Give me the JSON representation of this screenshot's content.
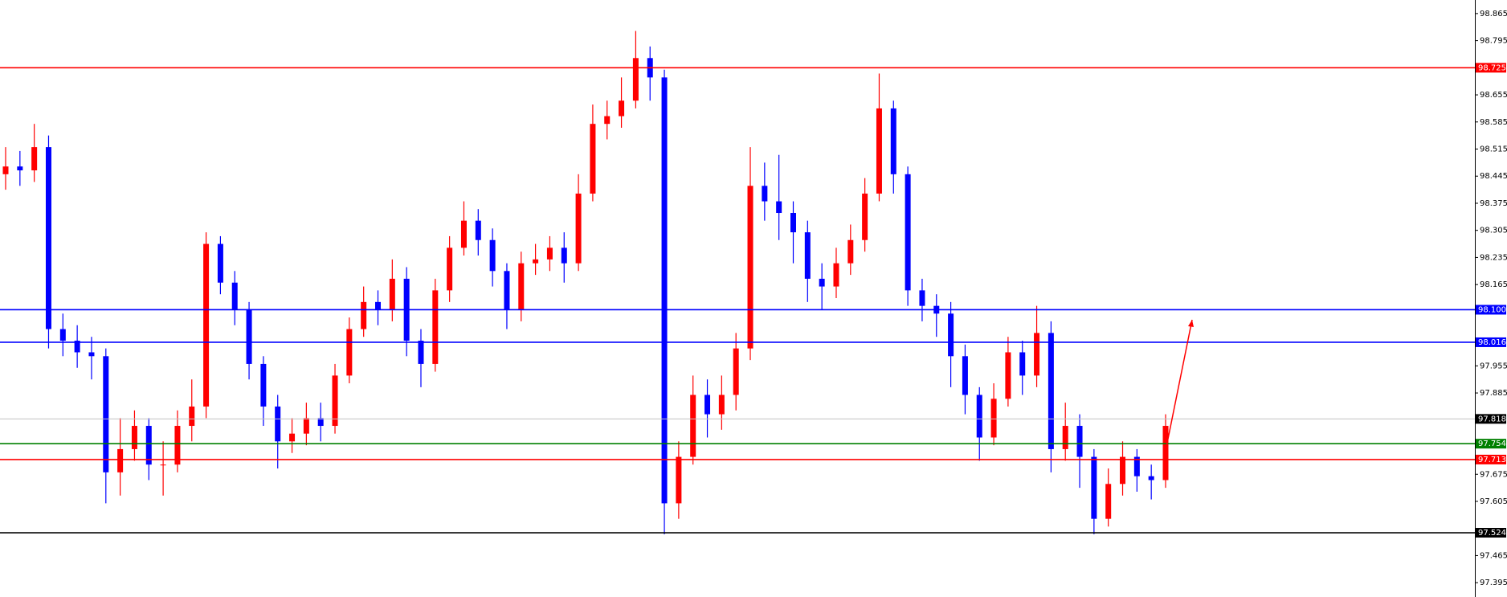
{
  "chart_data": {
    "type": "candlestick",
    "open": [
      98.45,
      98.47,
      98.46,
      98.52,
      98.05,
      98.02,
      97.99,
      97.98,
      97.68,
      97.74,
      97.8,
      97.7,
      97.7,
      97.8,
      97.85,
      98.27,
      98.17,
      98.1,
      97.96,
      97.85,
      97.76,
      97.78,
      97.82,
      97.8,
      97.93,
      98.05,
      98.12,
      98.1,
      98.18,
      98.02,
      97.96,
      98.15,
      98.26,
      98.33,
      98.28,
      98.2,
      98.1,
      98.22,
      98.23,
      98.26,
      98.22,
      98.4,
      98.58,
      98.6,
      98.64,
      98.75,
      98.7,
      97.6,
      97.72,
      97.88,
      97.83,
      97.88,
      98.0,
      98.42,
      98.38,
      98.35,
      98.3,
      98.18,
      98.16,
      98.22,
      98.28,
      98.4,
      98.62,
      98.45,
      98.15,
      98.11,
      98.09,
      97.98,
      97.88,
      97.77,
      97.87,
      97.99,
      97.93,
      98.04,
      97.74,
      97.8,
      97.72,
      97.56,
      97.65,
      97.72,
      97.67,
      97.66
    ],
    "high": [
      98.52,
      98.51,
      98.58,
      98.55,
      98.09,
      98.06,
      98.03,
      98.0,
      97.82,
      97.84,
      97.82,
      97.76,
      97.84,
      97.92,
      98.3,
      98.29,
      98.2,
      98.12,
      97.98,
      97.88,
      97.82,
      97.86,
      97.86,
      97.96,
      98.08,
      98.16,
      98.15,
      98.23,
      98.21,
      98.05,
      98.18,
      98.29,
      98.38,
      98.36,
      98.31,
      98.22,
      98.25,
      98.27,
      98.29,
      98.3,
      98.45,
      98.63,
      98.64,
      98.7,
      98.82,
      98.78,
      98.72,
      97.76,
      97.93,
      97.92,
      97.93,
      98.04,
      98.52,
      98.48,
      98.5,
      98.38,
      98.33,
      98.22,
      98.26,
      98.32,
      98.44,
      98.71,
      98.64,
      98.47,
      98.18,
      98.14,
      98.12,
      98.01,
      97.9,
      97.91,
      98.03,
      98.02,
      98.11,
      98.07,
      97.86,
      97.83,
      97.74,
      97.69,
      97.76,
      97.74,
      97.7,
      97.83
    ],
    "low": [
      98.41,
      98.42,
      98.43,
      98.0,
      97.98,
      97.95,
      97.92,
      97.6,
      97.62,
      97.71,
      97.66,
      97.62,
      97.68,
      97.76,
      97.82,
      98.14,
      98.06,
      97.92,
      97.8,
      97.69,
      97.73,
      97.75,
      97.76,
      97.78,
      97.91,
      98.03,
      98.06,
      98.07,
      97.98,
      97.9,
      97.94,
      98.12,
      98.24,
      98.24,
      98.16,
      98.05,
      98.07,
      98.19,
      98.2,
      98.17,
      98.2,
      98.38,
      98.54,
      98.57,
      98.62,
      98.64,
      97.52,
      97.56,
      97.7,
      97.77,
      97.79,
      97.84,
      97.97,
      98.33,
      98.28,
      98.22,
      98.12,
      98.1,
      98.13,
      98.19,
      98.25,
      98.38,
      98.4,
      98.11,
      98.07,
      98.03,
      97.9,
      97.83,
      97.71,
      97.75,
      97.85,
      97.88,
      97.9,
      97.68,
      97.71,
      97.64,
      97.52,
      97.54,
      97.62,
      97.63,
      97.61,
      97.64
    ],
    "close": [
      98.47,
      98.46,
      98.52,
      98.05,
      98.02,
      97.99,
      97.98,
      97.68,
      97.74,
      97.8,
      97.7,
      97.7,
      97.8,
      97.85,
      98.27,
      98.17,
      98.1,
      97.96,
      97.85,
      97.76,
      97.78,
      97.82,
      97.8,
      97.93,
      98.05,
      98.12,
      98.1,
      98.18,
      98.02,
      97.96,
      98.15,
      98.26,
      98.33,
      98.28,
      98.2,
      98.1,
      98.22,
      98.23,
      98.26,
      98.22,
      98.4,
      98.58,
      98.6,
      98.64,
      98.75,
      98.7,
      97.6,
      97.72,
      97.88,
      97.83,
      97.88,
      98.0,
      98.42,
      98.38,
      98.35,
      98.3,
      98.18,
      98.16,
      98.22,
      98.28,
      98.4,
      98.62,
      98.45,
      98.15,
      98.11,
      98.09,
      97.98,
      97.88,
      97.77,
      97.87,
      97.99,
      97.93,
      98.04,
      97.74,
      97.8,
      97.72,
      97.56,
      97.65,
      97.72,
      97.67,
      97.66,
      97.8
    ],
    "up_color": "#ff0000",
    "down_color": "#0000ff",
    "ylim": [
      97.358,
      98.9
    ],
    "yticks": [
      98.865,
      98.795,
      98.655,
      98.585,
      98.515,
      98.445,
      98.375,
      98.305,
      98.235,
      98.165,
      97.955,
      97.885,
      97.675,
      97.605,
      97.465,
      97.395
    ],
    "levels": [
      {
        "value": 98.725,
        "label": "98.725",
        "color": "#ff0000"
      },
      {
        "value": 98.1,
        "label": "98.100",
        "color": "#0000ff"
      },
      {
        "value": 98.016,
        "label": "98.016",
        "color": "#0000ff"
      },
      {
        "value": 97.818,
        "label": "97.818",
        "color": "#c0c0c0"
      },
      {
        "value": 97.754,
        "label": "97.754",
        "color": "#008000"
      },
      {
        "value": 97.713,
        "label": "97.713",
        "color": "#ff0000"
      },
      {
        "value": 97.524,
        "label": "97.524",
        "color": "#000000"
      }
    ],
    "grid": false
  }
}
